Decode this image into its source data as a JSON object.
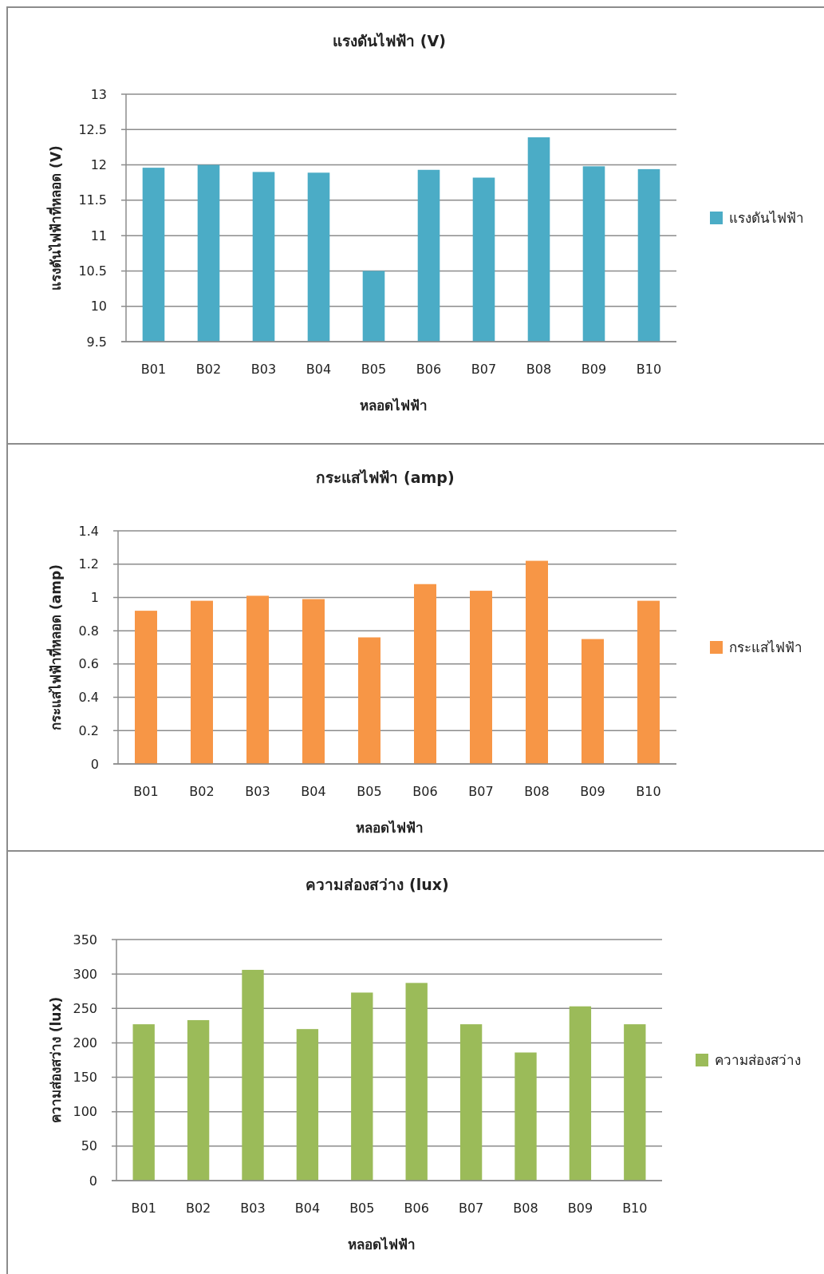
{
  "chart_data": [
    {
      "type": "bar",
      "title": "แรงดันไฟฟ้า (V)",
      "xlabel": "หลอดไฟฟ้า",
      "ylabel": "แรงดันไฟฟ้าที่หลอด (V)",
      "categories": [
        "B01",
        "B02",
        "B03",
        "B04",
        "B05",
        "B06",
        "B07",
        "B08",
        "B09",
        "B10"
      ],
      "series": [
        {
          "name": "แรงดันไฟฟ้า",
          "color": "#4bacc6",
          "values": [
            11.96,
            12.0,
            11.9,
            11.89,
            10.5,
            11.93,
            11.82,
            12.39,
            11.98,
            11.94
          ]
        }
      ],
      "ylim": [
        9.5,
        13
      ],
      "yticks": [
        9.5,
        10,
        10.5,
        11,
        11.5,
        12,
        12.5,
        13
      ],
      "grid": "y",
      "legend": "right"
    },
    {
      "type": "bar",
      "title": "กระแสไฟฟ้า (amp)",
      "xlabel": "หลอดไฟฟ้า",
      "ylabel": "กระแสไฟฟ้าที่หลอด (amp)",
      "categories": [
        "B01",
        "B02",
        "B03",
        "B04",
        "B05",
        "B06",
        "B07",
        "B08",
        "B09",
        "B10"
      ],
      "series": [
        {
          "name": "กระแสไฟฟ้า",
          "color": "#f79646",
          "values": [
            0.92,
            0.98,
            1.01,
            0.99,
            0.76,
            1.08,
            1.04,
            1.22,
            0.75,
            0.98
          ]
        }
      ],
      "ylim": [
        0,
        1.4
      ],
      "yticks": [
        0,
        0.2,
        0.4,
        0.6,
        0.8,
        1,
        1.2,
        1.4
      ],
      "grid": "y",
      "legend": "right"
    },
    {
      "type": "bar",
      "title": "ความส่องสว่าง (lux)",
      "xlabel": "หลอดไฟฟ้า",
      "ylabel": "ความส่องสว่าง (lux)",
      "categories": [
        "B01",
        "B02",
        "B03",
        "B04",
        "B05",
        "B06",
        "B07",
        "B08",
        "B09",
        "B10"
      ],
      "series": [
        {
          "name": "ความส่องสว่าง",
          "color": "#9bbb59",
          "values": [
            227,
            233,
            306,
            220,
            273,
            287,
            227,
            186,
            253,
            227
          ]
        }
      ],
      "ylim": [
        0,
        350
      ],
      "yticks": [
        0,
        50,
        100,
        150,
        200,
        250,
        300,
        350
      ],
      "grid": "y",
      "legend": "right"
    }
  ]
}
